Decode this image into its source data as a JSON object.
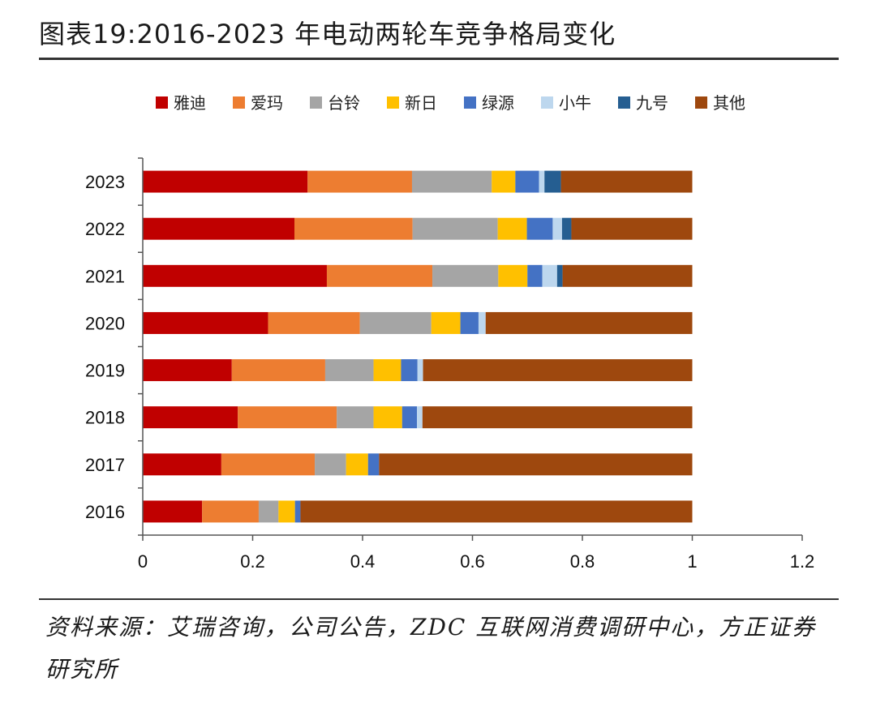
{
  "title": "图表19:2016-2023 年电动两轮车竞争格局变化",
  "source": "资料来源：艾瑞咨询，公司公告，ZDC 互联网消费调研中心，方正证券研究所",
  "chart_data": {
    "type": "bar",
    "orientation": "horizontal",
    "stacked": true,
    "categories": [
      "2023",
      "2022",
      "2021",
      "2020",
      "2019",
      "2018",
      "2017",
      "2016"
    ],
    "xlim": [
      0,
      1.2
    ],
    "xticks": [
      "0",
      "0.2",
      "0.4",
      "0.6",
      "0.8",
      "1",
      "1.2"
    ],
    "grid": false,
    "legend_position": "top",
    "series": [
      {
        "name": "雅迪",
        "color": "#C00000",
        "values": [
          0.3,
          0.276,
          0.335,
          0.228,
          0.162,
          0.173,
          0.143,
          0.108
        ]
      },
      {
        "name": "爱玛",
        "color": "#ED7D31",
        "values": [
          0.19,
          0.215,
          0.192,
          0.167,
          0.17,
          0.18,
          0.17,
          0.103
        ]
      },
      {
        "name": "台铃",
        "color": "#A5A5A5",
        "values": [
          0.145,
          0.155,
          0.12,
          0.13,
          0.088,
          0.067,
          0.057,
          0.036
        ]
      },
      {
        "name": "新日",
        "color": "#FFC000",
        "values": [
          0.043,
          0.053,
          0.053,
          0.053,
          0.05,
          0.052,
          0.04,
          0.03
        ]
      },
      {
        "name": "绿源",
        "color": "#4472C4",
        "values": [
          0.043,
          0.047,
          0.027,
          0.033,
          0.03,
          0.027,
          0.02,
          0.01
        ]
      },
      {
        "name": "小牛",
        "color": "#BDD7EE",
        "values": [
          0.01,
          0.017,
          0.027,
          0.013,
          0.01,
          0.01,
          0.0,
          0.0
        ]
      },
      {
        "name": "九号",
        "color": "#255E91",
        "values": [
          0.03,
          0.017,
          0.01,
          0.0,
          0.0,
          0.0,
          0.0,
          0.0
        ]
      },
      {
        "name": "其他",
        "color": "#9E480E",
        "values": [
          0.239,
          0.22,
          0.236,
          0.376,
          0.49,
          0.491,
          0.57,
          0.713
        ]
      }
    ]
  }
}
